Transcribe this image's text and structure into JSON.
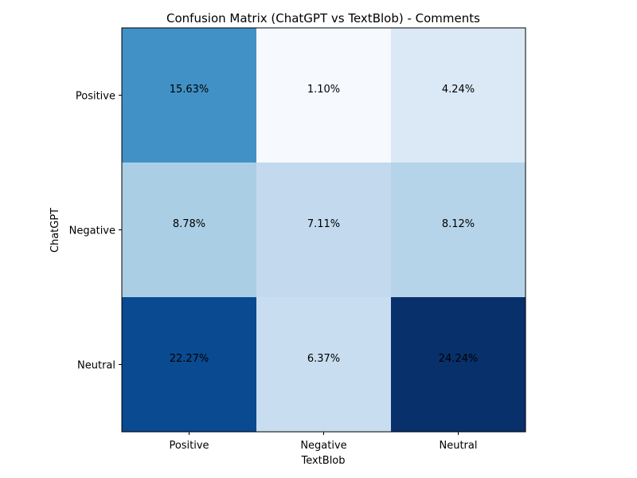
{
  "chart_data": {
    "type": "heatmap",
    "title": "Confusion Matrix (ChatGPT vs TextBlob) - Comments",
    "xlabel": "TextBlob",
    "ylabel": "ChatGPT",
    "x_categories": [
      "Positive",
      "Negative",
      "Neutral"
    ],
    "y_categories": [
      "Positive",
      "Negative",
      "Neutral"
    ],
    "values": [
      [
        15.63,
        1.1,
        4.24
      ],
      [
        8.78,
        7.11,
        8.12
      ],
      [
        22.27,
        6.37,
        24.24
      ]
    ],
    "labels": [
      [
        "15.63%",
        "1.10%",
        "4.24%"
      ],
      [
        "8.78%",
        "7.11%",
        "8.12%"
      ],
      [
        "22.27%",
        "6.37%",
        "24.24%"
      ]
    ],
    "cell_colors": [
      [
        "#4191c6",
        "#f6faff",
        "#dbe9f6"
      ],
      [
        "#aacfe5",
        "#c3daee",
        "#b5d4e9"
      ],
      [
        "#0a4a90",
        "#c9ddf0",
        "#08306b"
      ]
    ],
    "colormap": "Blues",
    "grid": false
  }
}
